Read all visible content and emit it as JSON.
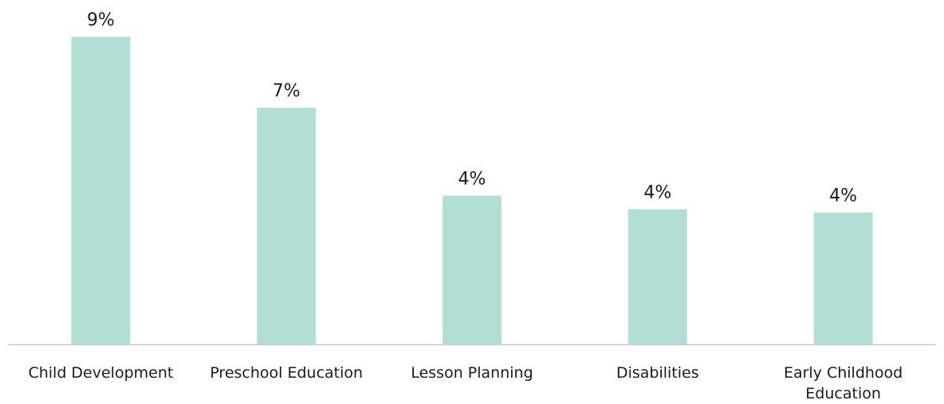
{
  "chart_data": {
    "type": "bar",
    "categories": [
      [
        "Child Development"
      ],
      [
        "Preschool Education"
      ],
      [
        "Lesson Planning"
      ],
      [
        "Disabilities"
      ],
      [
        "Early Childhood",
        "Education"
      ]
    ],
    "values": [
      9.1,
      7.0,
      4.4,
      4.0,
      3.9
    ],
    "data_labels": [
      "9%",
      "7%",
      "4%",
      "4%",
      "4%"
    ],
    "ylim": [
      0,
      10
    ],
    "grid": false,
    "bar_color": "#b3ded6",
    "axis_color": "#c8c8c8"
  }
}
